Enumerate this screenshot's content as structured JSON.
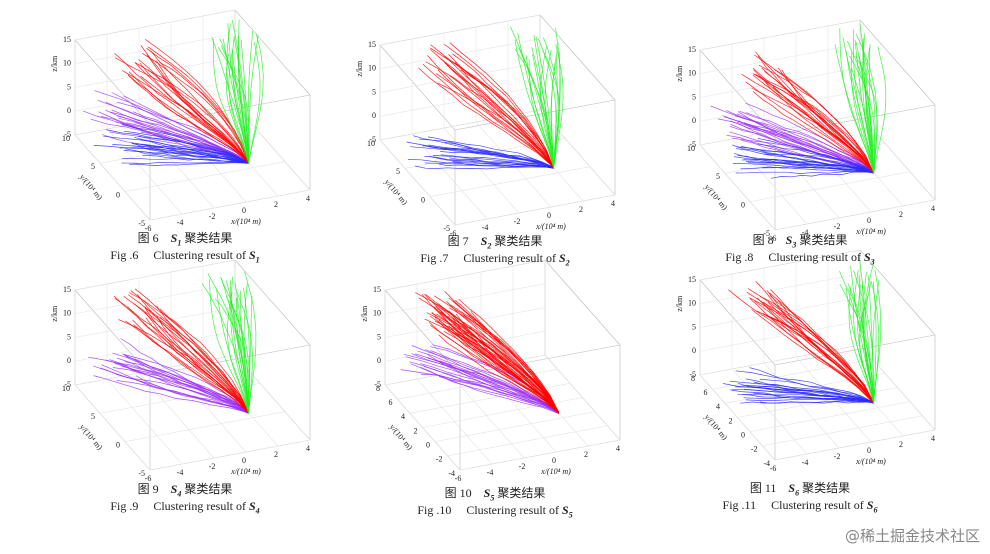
{
  "figures": [
    {
      "caption_cn": {
        "label": "图 6",
        "symbol": "S",
        "sub": "1",
        "text": "聚类结果"
      },
      "caption_en": {
        "label": "Fig .6",
        "text": "Clustering result of",
        "symbol": "S",
        "sub": "1"
      },
      "axes": {
        "xlabel": "x/(10⁴ m)",
        "ylabel": "y/(10⁴ m)",
        "zlabel": "z/km",
        "xlim": [
          -6,
          4
        ],
        "ylim": [
          -5,
          10
        ],
        "zlim": [
          -5,
          15
        ],
        "xticks": [
          -6,
          -4,
          -2,
          0,
          2,
          4
        ],
        "yticks": [
          -5,
          0,
          5,
          10
        ],
        "zticks": [
          -5,
          0,
          5,
          10,
          15
        ]
      },
      "clusters": [
        "#9b30ff",
        "#2a2aff",
        "#ff0000",
        "#22ee22"
      ]
    },
    {
      "caption_cn": {
        "label": "图 7",
        "symbol": "S",
        "sub": "2",
        "text": "聚类结果"
      },
      "caption_en": {
        "label": "Fig .7",
        "text": "Clustering result of",
        "symbol": "S",
        "sub": "2"
      },
      "axes": {
        "xlabel": "x/(10⁴ m)",
        "ylabel": "y/(10⁴ m)",
        "zlabel": "z/km",
        "xlim": [
          -6,
          4
        ],
        "ylim": [
          -5,
          10
        ],
        "zlim": [
          -5,
          15
        ],
        "xticks": [
          -6,
          -4,
          -2,
          0,
          2,
          4
        ],
        "yticks": [
          -5,
          0,
          5,
          10
        ],
        "zticks": [
          -5,
          0,
          5,
          10,
          15
        ]
      },
      "clusters": [
        "#2a2aff",
        "#ff0000",
        "#22ee22"
      ]
    },
    {
      "caption_cn": {
        "label": "图 8",
        "symbol": "S",
        "sub": "3",
        "text": "聚类结果"
      },
      "caption_en": {
        "label": "Fig .8",
        "text": "Clustering result of",
        "symbol": "S",
        "sub": "3"
      },
      "axes": {
        "xlabel": "x/(10⁴ m)",
        "ylabel": "y/(10⁴ m)",
        "zlabel": "z/km",
        "xlim": [
          -6,
          4
        ],
        "ylim": [
          -5,
          10
        ],
        "zlim": [
          -5,
          15
        ],
        "xticks": [
          -6,
          -4,
          -2,
          0,
          2,
          4
        ],
        "yticks": [
          -5,
          0,
          5,
          10
        ],
        "zticks": [
          -5,
          0,
          5,
          10,
          15
        ]
      },
      "clusters": [
        "#9b30ff",
        "#2a2aff",
        "#ff0000",
        "#22ee22"
      ]
    },
    {
      "caption_cn": {
        "label": "图 9",
        "symbol": "S",
        "sub": "4",
        "text": "聚类结果"
      },
      "caption_en": {
        "label": "Fig .9",
        "text": "Clustering result of",
        "symbol": "S",
        "sub": "4"
      },
      "axes": {
        "xlabel": "x/(10⁴ m)",
        "ylabel": "y/(10⁴ m)",
        "zlabel": "z/km",
        "xlim": [
          -6,
          4
        ],
        "ylim": [
          -5,
          10
        ],
        "zlim": [
          -5,
          15
        ],
        "xticks": [
          -6,
          -4,
          -2,
          0,
          2,
          4
        ],
        "yticks": [
          -5,
          0,
          5,
          10
        ],
        "zticks": [
          -5,
          0,
          5,
          10,
          15
        ]
      },
      "clusters": [
        "#9b30ff",
        "#ff0000",
        "#22ee22"
      ]
    },
    {
      "caption_cn": {
        "label": "图 10",
        "symbol": "S",
        "sub": "5",
        "text": "聚类结果"
      },
      "caption_en": {
        "label": "Fig .10",
        "text": "Clustering result of",
        "symbol": "S",
        "sub": "5"
      },
      "axes": {
        "xlabel": "x/(10⁴ m)",
        "ylabel": "y/(10⁴ m)",
        "zlabel": "z/km",
        "xlim": [
          -6,
          4
        ],
        "ylim": [
          -4,
          8
        ],
        "zlim": [
          -5,
          15
        ],
        "xticks": [
          -6,
          -4,
          -2,
          0,
          2,
          4
        ],
        "yticks": [
          -4,
          -2,
          0,
          2,
          4,
          6,
          8
        ],
        "zticks": [
          -5,
          0,
          5,
          10,
          15
        ]
      },
      "clusters": [
        "#9b30ff",
        "#ff0000"
      ]
    },
    {
      "caption_cn": {
        "label": "图 11",
        "symbol": "S",
        "sub": "6",
        "text": "聚类结果"
      },
      "caption_en": {
        "label": "Fig .11",
        "text": "Clustering result of",
        "symbol": "S",
        "sub": "6"
      },
      "axes": {
        "xlabel": "x/(10⁴ m)",
        "ylabel": "y/(10⁴ m)",
        "zlabel": "z/km",
        "xlim": [
          -6,
          4
        ],
        "ylim": [
          -4,
          8
        ],
        "zlim": [
          -5,
          15
        ],
        "xticks": [
          -6,
          -4,
          -2,
          0,
          2,
          4
        ],
        "yticks": [
          -4,
          -2,
          0,
          2,
          4,
          6,
          8
        ],
        "zticks": [
          -5,
          0,
          5,
          10,
          15
        ]
      },
      "clusters": [
        "#2a2aff",
        "#ff0000",
        "#22ee22"
      ]
    }
  ],
  "watermark": "@稀土掘金技术社区"
}
